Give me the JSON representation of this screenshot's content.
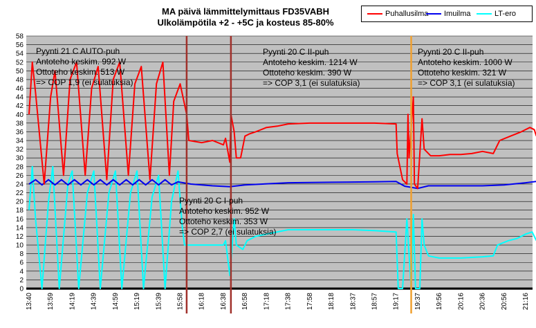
{
  "chart_data": {
    "type": "line",
    "title": [
      "MA päivä lämmittelymittaus  FD35VABH",
      "Ulkolämpötila +2 - +5C ja kosteus 85-80%"
    ],
    "ylim": [
      0,
      58
    ],
    "yticks": [
      0,
      2,
      4,
      6,
      8,
      10,
      12,
      14,
      16,
      18,
      20,
      22,
      24,
      26,
      28,
      30,
      32,
      34,
      36,
      38,
      40,
      42,
      44,
      46,
      48,
      50,
      52,
      54,
      56,
      58
    ],
    "xticks": [
      "13:40",
      "13:59",
      "14:19",
      "14:39",
      "14:59",
      "15:19",
      "15:39",
      "15:58",
      "16:18",
      "16:38",
      "16:58",
      "17:18",
      "17:38",
      "17:58",
      "18:18",
      "18:37",
      "18:57",
      "19:17",
      "19:37",
      "19:56",
      "20:16",
      "20:36",
      "20:56",
      "21:16"
    ],
    "grid": true,
    "legend_position": "top-right",
    "series": [
      {
        "name": "Puhallusilma",
        "color": "#ff0000",
        "points": [
          [
            0,
            40
          ],
          [
            0.15,
            52
          ],
          [
            0.3,
            45
          ],
          [
            0.7,
            24
          ],
          [
            1.0,
            44
          ],
          [
            1.2,
            50
          ],
          [
            1.6,
            26
          ],
          [
            1.9,
            48
          ],
          [
            2.2,
            52
          ],
          [
            2.6,
            26
          ],
          [
            2.9,
            46
          ],
          [
            3.2,
            51
          ],
          [
            3.6,
            25
          ],
          [
            3.9,
            48
          ],
          [
            4.2,
            52
          ],
          [
            4.6,
            26
          ],
          [
            4.9,
            47
          ],
          [
            5.2,
            51
          ],
          [
            5.6,
            25
          ],
          [
            5.9,
            47
          ],
          [
            6.2,
            52
          ],
          [
            6.5,
            26
          ],
          [
            6.7,
            43
          ],
          [
            7.0,
            47
          ],
          [
            7.3,
            40
          ],
          [
            7.4,
            34
          ],
          [
            8.0,
            33.5
          ],
          [
            8.5,
            34
          ],
          [
            9.0,
            33
          ],
          [
            9.1,
            34.5
          ],
          [
            9.3,
            29
          ],
          [
            9.35,
            40
          ],
          [
            9.5,
            36
          ],
          [
            9.6,
            30
          ],
          [
            9.8,
            30
          ],
          [
            10.0,
            35
          ],
          [
            10.2,
            35.5
          ],
          [
            10.5,
            36
          ],
          [
            11.0,
            37
          ],
          [
            11.5,
            37.3
          ],
          [
            12.0,
            37.8
          ],
          [
            13.0,
            38
          ],
          [
            14.0,
            38
          ],
          [
            15.0,
            38
          ],
          [
            16.0,
            38
          ],
          [
            17.0,
            37.8
          ],
          [
            17.05,
            31
          ],
          [
            17.3,
            25
          ],
          [
            17.5,
            24
          ],
          [
            17.55,
            40
          ],
          [
            17.6,
            30
          ],
          [
            17.8,
            44
          ],
          [
            17.85,
            24
          ],
          [
            18.0,
            23
          ],
          [
            18.2,
            39
          ],
          [
            18.3,
            32
          ],
          [
            18.6,
            30.5
          ],
          [
            19.0,
            30.5
          ],
          [
            19.5,
            30.8
          ],
          [
            20.0,
            30.8
          ],
          [
            20.5,
            31
          ],
          [
            21.0,
            31.5
          ],
          [
            21.5,
            31
          ],
          [
            21.8,
            34
          ],
          [
            22.3,
            35
          ],
          [
            22.8,
            36
          ],
          [
            23.2,
            37
          ],
          [
            23.4,
            36.5
          ],
          [
            23.5,
            35
          ]
        ]
      },
      {
        "name": "Imuilma",
        "color": "#0000ee",
        "points": [
          [
            0,
            24
          ],
          [
            0.3,
            25
          ],
          [
            0.6,
            23.8
          ],
          [
            0.9,
            25
          ],
          [
            1.2,
            23.8
          ],
          [
            1.5,
            25
          ],
          [
            1.8,
            23.8
          ],
          [
            2.1,
            25
          ],
          [
            2.4,
            23.8
          ],
          [
            2.7,
            25
          ],
          [
            3.0,
            23.8
          ],
          [
            3.3,
            25
          ],
          [
            3.6,
            23.8
          ],
          [
            3.9,
            25
          ],
          [
            4.2,
            23.8
          ],
          [
            4.5,
            25
          ],
          [
            4.8,
            23.8
          ],
          [
            5.1,
            25
          ],
          [
            5.4,
            23.8
          ],
          [
            5.7,
            25
          ],
          [
            6.0,
            23.8
          ],
          [
            6.3,
            25
          ],
          [
            6.6,
            23.8
          ],
          [
            6.9,
            24.5
          ],
          [
            7.5,
            24
          ],
          [
            8.5,
            23.6
          ],
          [
            9.3,
            23.4
          ],
          [
            10.0,
            23.8
          ],
          [
            12.0,
            24.3
          ],
          [
            14.0,
            24.4
          ],
          [
            16.0,
            24.5
          ],
          [
            17.0,
            24.6
          ],
          [
            17.4,
            23.5
          ],
          [
            18.0,
            23
          ],
          [
            18.5,
            23.6
          ],
          [
            20.0,
            23.6
          ],
          [
            21.0,
            23.6
          ],
          [
            22.0,
            23.8
          ],
          [
            23.0,
            24.3
          ],
          [
            23.5,
            24.6
          ]
        ]
      },
      {
        "name": "LT-ero",
        "color": "#00ffff",
        "points": [
          [
            0,
            18
          ],
          [
            0.15,
            28
          ],
          [
            0.3,
            16
          ],
          [
            0.6,
            0
          ],
          [
            0.9,
            20
          ],
          [
            1.1,
            28
          ],
          [
            1.4,
            0
          ],
          [
            1.8,
            24
          ],
          [
            2.0,
            27
          ],
          [
            2.3,
            0
          ],
          [
            2.7,
            22
          ],
          [
            3.0,
            27
          ],
          [
            3.3,
            0
          ],
          [
            3.7,
            22
          ],
          [
            4.0,
            27
          ],
          [
            4.3,
            0
          ],
          [
            4.7,
            22
          ],
          [
            5.0,
            27
          ],
          [
            5.3,
            0
          ],
          [
            5.7,
            21
          ],
          [
            6.0,
            26
          ],
          [
            6.3,
            0
          ],
          [
            6.6,
            20
          ],
          [
            6.9,
            27
          ],
          [
            7.1,
            14
          ],
          [
            7.2,
            10
          ],
          [
            8.0,
            10
          ],
          [
            9.0,
            10
          ],
          [
            9.1,
            11
          ],
          [
            9.3,
            3
          ],
          [
            9.35,
            6
          ],
          [
            9.5,
            16
          ],
          [
            9.6,
            10
          ],
          [
            9.9,
            9
          ],
          [
            10.1,
            11
          ],
          [
            10.5,
            12
          ],
          [
            11.0,
            12.5
          ],
          [
            12.0,
            13.5
          ],
          [
            13.0,
            13.5
          ],
          [
            14.0,
            13.5
          ],
          [
            15.0,
            13.5
          ],
          [
            16.0,
            13.3
          ],
          [
            17.0,
            13
          ],
          [
            17.1,
            0
          ],
          [
            17.3,
            0
          ],
          [
            17.5,
            16
          ],
          [
            17.7,
            0
          ],
          [
            17.8,
            17
          ],
          [
            17.9,
            0
          ],
          [
            18.1,
            0
          ],
          [
            18.2,
            16
          ],
          [
            18.3,
            10
          ],
          [
            18.5,
            7.5
          ],
          [
            19.0,
            7
          ],
          [
            20.0,
            7
          ],
          [
            21.0,
            7.3
          ],
          [
            21.5,
            7.5
          ],
          [
            21.7,
            10
          ],
          [
            22.2,
            11
          ],
          [
            22.6,
            11.5
          ],
          [
            23.0,
            12.5
          ],
          [
            23.3,
            13
          ],
          [
            23.5,
            11
          ]
        ]
      }
    ],
    "vertical_markers": [
      {
        "x": 7.3,
        "color": "#a0302a"
      },
      {
        "x": 9.35,
        "color": "#a0302a"
      },
      {
        "x": 17.7,
        "color": "#f0a030"
      }
    ],
    "annotations": [
      {
        "lines": [
          "Pyynti 21 C AUTO-puh",
          "Antoteho keskim. 992 W",
          "Ottoteho keskim. 513 W",
          "=> COP 1,9 (ei sulatuksia)"
        ]
      },
      {
        "lines": [
          "Pyynti 20 C II-puh",
          "Antoteho keskim. 1214 W",
          "Ottoteho keskim. 390 W",
          "=> COP 3,1 (ei sulatuksia)"
        ]
      },
      {
        "lines": [
          "Pyynti 20 C II-puh",
          "Antoteho keskim. 1000 W",
          "Ottoteho keskim. 321 W",
          "=> COP 3,1 (ei sulatuksia)"
        ]
      },
      {
        "lines": [
          "Pyynti 20 C I-puh",
          "Antoteho keskim. 952 W",
          "Ottoteho keskim. 353 W",
          "=> COP 2,7 (ei sulatuksia)"
        ]
      }
    ]
  }
}
